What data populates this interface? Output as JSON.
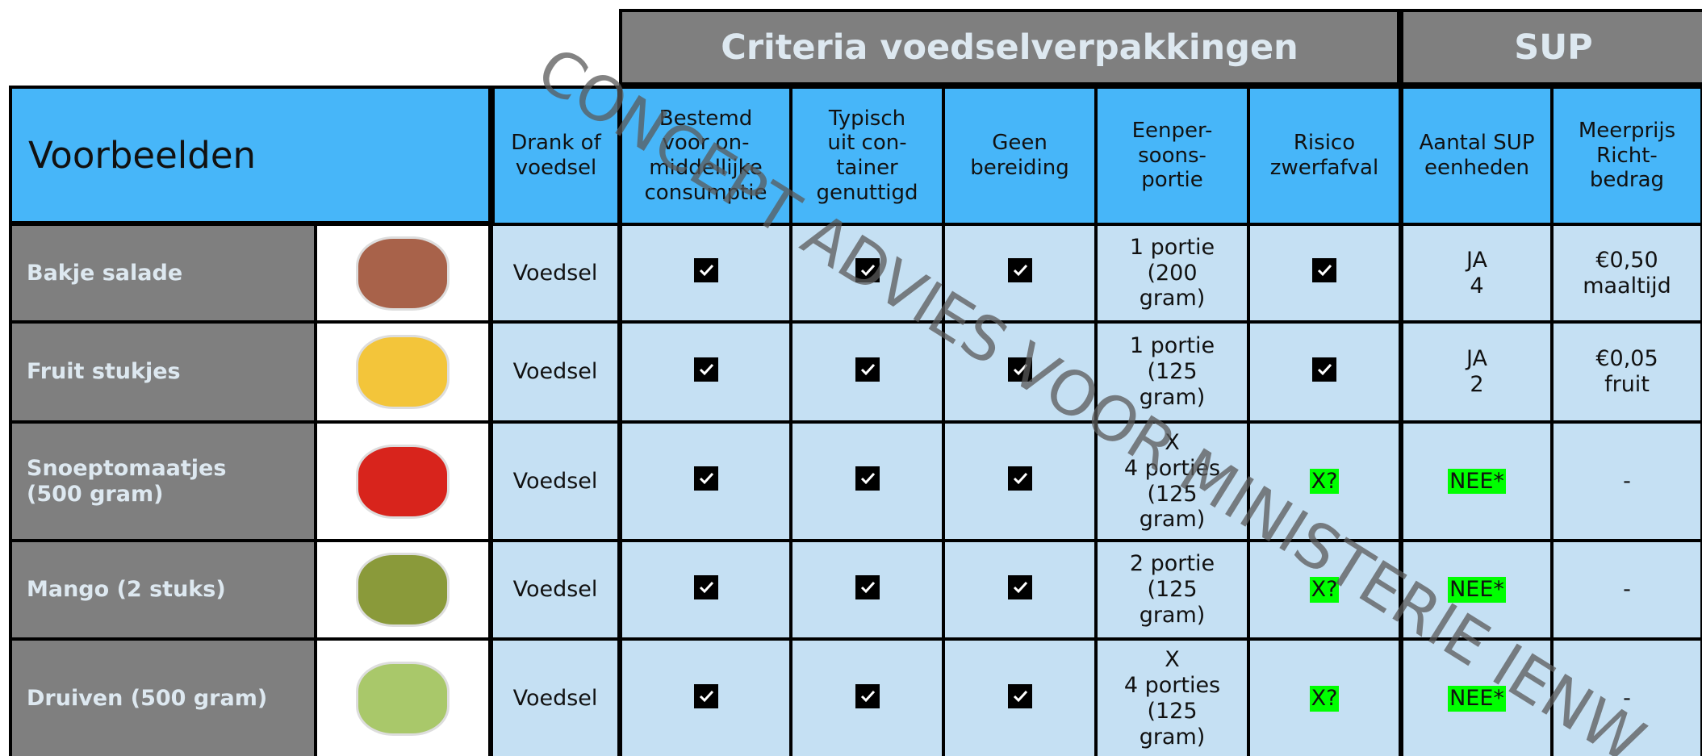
{
  "header": {
    "group_title": "Criteria voedselverpakkingen",
    "sup_title": "SUP",
    "examples_label": "Voorbeelden",
    "columns": [
      [
        "Drank of",
        "voedsel"
      ],
      [
        "Bestemd",
        "voor on-",
        "middellijke",
        "consumptie"
      ],
      [
        "Typisch",
        "uit con-",
        "tainer",
        "genuttigd"
      ],
      [
        "Geen",
        "bereiding"
      ],
      [
        "Eenper-",
        "soons-",
        "portie"
      ],
      [
        "Risico",
        "zwerfafval"
      ],
      [
        "Aantal SUP",
        "eenheden"
      ],
      [
        "Meerprijs",
        "Richt-",
        "bedrag"
      ]
    ]
  },
  "table": {
    "rows": [
      {
        "name": [
          "Bakje salade"
        ],
        "cells": [
          {
            "lines": [
              "Voedsel"
            ]
          },
          true,
          true,
          true,
          {
            "lines": [
              "1 portie",
              "(200",
              "gram)"
            ]
          },
          true,
          {
            "lines": [
              "JA",
              "4"
            ]
          },
          {
            "lines": [
              "€0,50",
              "maaltijd"
            ]
          }
        ]
      },
      {
        "name": [
          "Fruit stukjes"
        ],
        "cells": [
          {
            "lines": [
              "Voedsel"
            ]
          },
          true,
          true,
          true,
          {
            "lines": [
              "1 portie",
              "(125",
              "gram)"
            ]
          },
          true,
          {
            "lines": [
              "JA",
              "2"
            ]
          },
          {
            "lines": [
              "€0,05",
              "fruit"
            ]
          }
        ]
      },
      {
        "name": [
          "Snoeptomaatjes",
          "(500 gram)"
        ],
        "cells": [
          {
            "lines": [
              "Voedsel"
            ]
          },
          true,
          true,
          true,
          {
            "lines": [
              "X",
              "4 porties",
              "(125",
              "gram)"
            ]
          },
          {
            "lines": [
              "X?"
            ],
            "highlight": "#00ff00"
          },
          {
            "lines": [
              "NEE*"
            ],
            "highlight": "#00ff00"
          },
          {
            "lines": [
              "-"
            ]
          }
        ]
      },
      {
        "name": [
          "Mango (2 stuks)"
        ],
        "cells": [
          {
            "lines": [
              "Voedsel"
            ]
          },
          true,
          true,
          true,
          {
            "lines": [
              "2 portie",
              "(125",
              "gram)"
            ]
          },
          {
            "lines": [
              "X?"
            ],
            "highlight": "#00ff00"
          },
          {
            "lines": [
              "NEE*"
            ],
            "highlight": "#00ff00"
          },
          {
            "lines": [
              "-"
            ]
          }
        ]
      },
      {
        "name": [
          "Druiven (500 gram)"
        ],
        "cells": [
          {
            "lines": [
              "Voedsel"
            ]
          },
          true,
          true,
          true,
          {
            "lines": [
              "X",
              "4 porties",
              "(125",
              "gram)"
            ]
          },
          {
            "lines": [
              "X?"
            ],
            "highlight": "#00ff00"
          },
          {
            "lines": [
              "NEE*"
            ],
            "highlight": "#00ff00"
          },
          {
            "lines": [
              "-"
            ]
          }
        ]
      }
    ]
  },
  "watermark": "CONCEPT ADVIES VOOR MINISTERIE IENW"
}
